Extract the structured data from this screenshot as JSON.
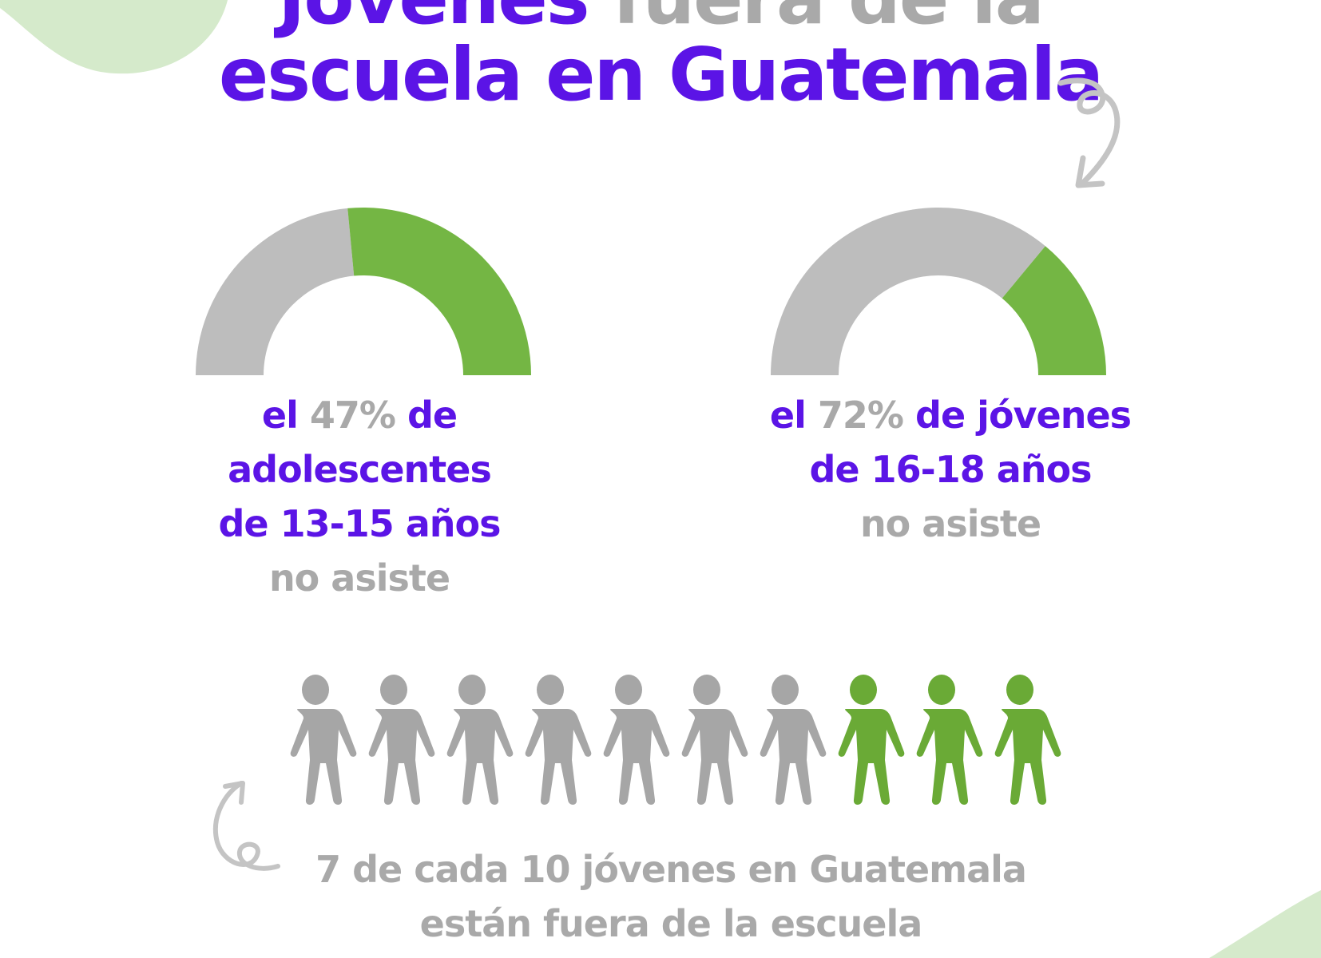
{
  "title": {
    "line1_highlight": "Jóvenes",
    "line1_rest": "fuera de la",
    "line2": "escuela en Guatemala"
  },
  "colors": {
    "purple": "#5b14e6",
    "grey_text": "#a9a9a9",
    "gauge_grey": "#bdbdbd",
    "green": "#74b644",
    "people_grey": "#a6a6a6",
    "people_green": "#6aaa36",
    "blob": "#d5eacb"
  },
  "chart_data": [
    {
      "type": "gauge",
      "value_pct": 47,
      "segments": [
        {
          "name": "no asiste",
          "color": "#bdbdbd",
          "pct": 47
        },
        {
          "name": "asiste",
          "color": "#74b644",
          "pct": 53
        }
      ],
      "caption": {
        "el": "el",
        "pct_text": "47%",
        "de": "de",
        "line2": "adolescentes",
        "line3": "de 13-15 años",
        "line4": "no asiste"
      }
    },
    {
      "type": "gauge",
      "value_pct": 72,
      "segments": [
        {
          "name": "no asiste",
          "color": "#bdbdbd",
          "pct": 72
        },
        {
          "name": "asiste",
          "color": "#74b644",
          "pct": 28
        }
      ],
      "caption": {
        "el": "el",
        "pct_text": "72%",
        "de": "de jóvenes",
        "line2": "de 16-18 años",
        "line3": "no asiste"
      }
    },
    {
      "type": "pictogram",
      "total": 10,
      "highlighted_grey": 7,
      "highlighted_green": 3,
      "caption_line1": "7 de cada 10 jóvenes en Guatemala",
      "caption_line2": "están fuera de la escuela"
    }
  ],
  "icons": {
    "person": "person-icon",
    "arrow_top": "curly-arrow-icon",
    "arrow_bottom": "curly-arrow-icon"
  }
}
